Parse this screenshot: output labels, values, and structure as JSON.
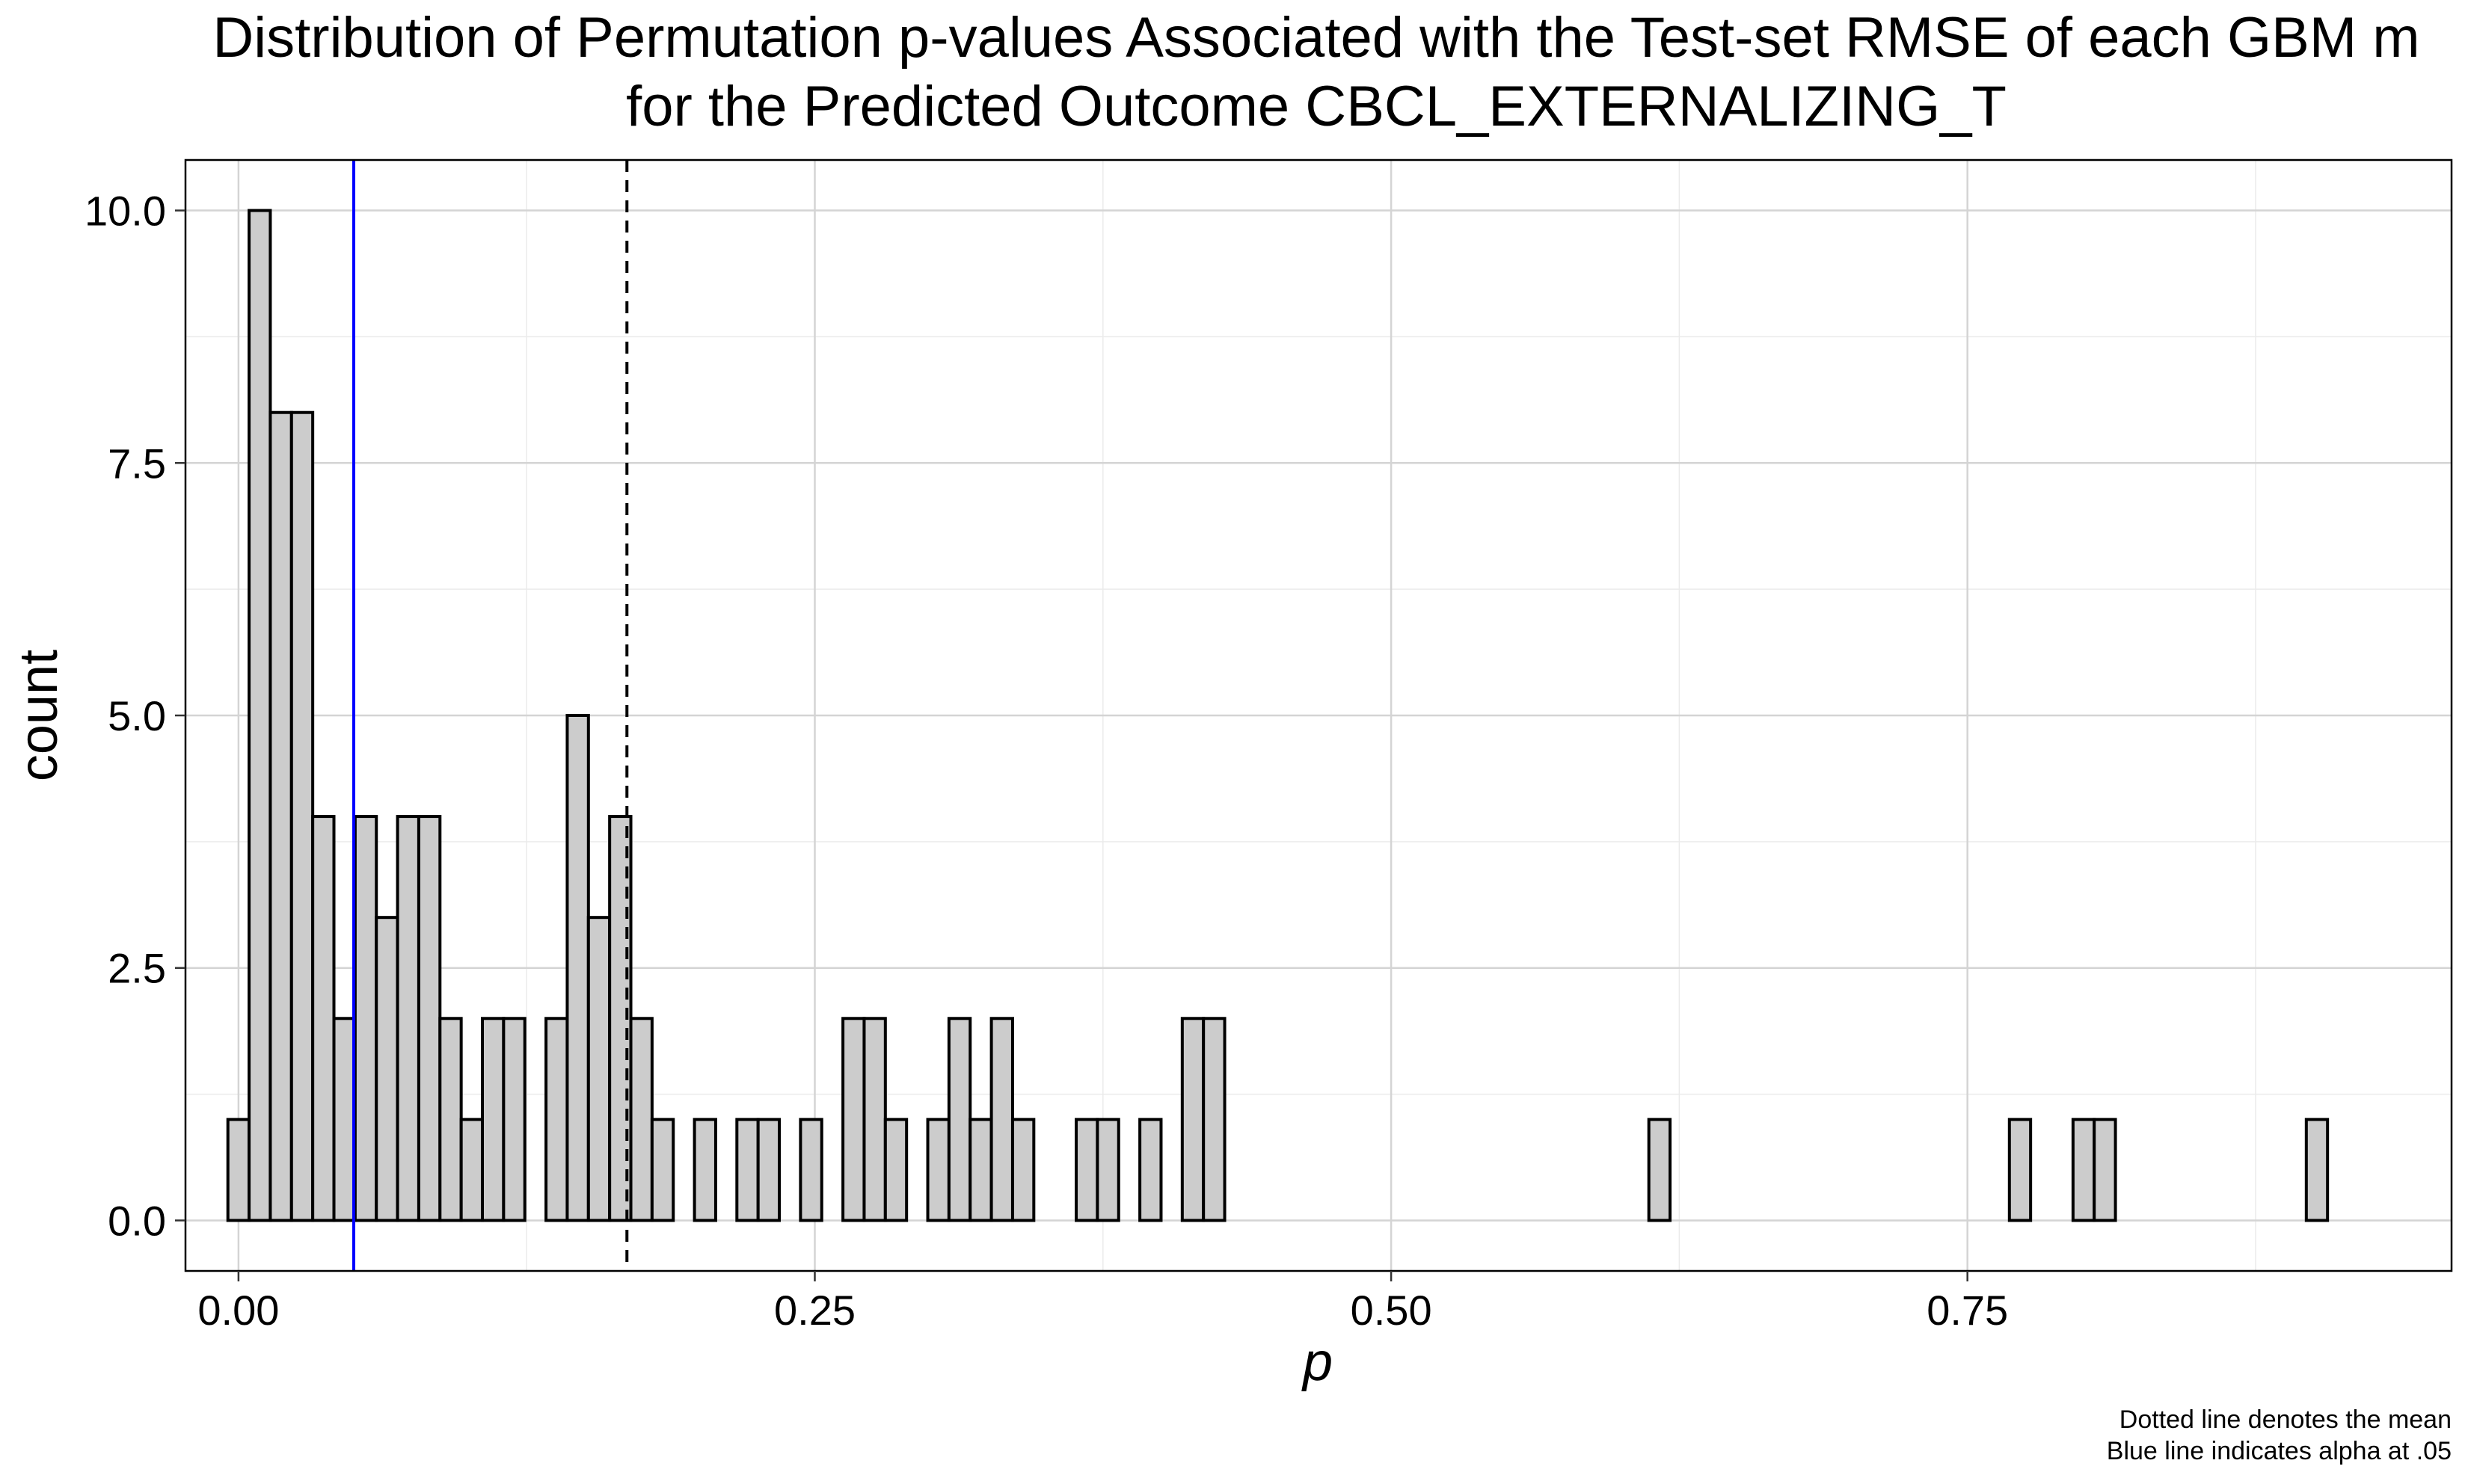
{
  "chart_data": {
    "type": "bar",
    "title_line1": "Distribution of Permutation p-values Associated with the Test-set RMSE of each GBM m",
    "title_line2": "for the Predicted Outcome CBCL_EXTERNALIZING_T",
    "xlabel": "p",
    "ylabel": "count",
    "xlim": [
      -0.023,
      0.96
    ],
    "ylim": [
      -0.5,
      10.5
    ],
    "x_ticks": [
      {
        "value": 0.0,
        "label": "0.00"
      },
      {
        "value": 0.25,
        "label": "0.25"
      },
      {
        "value": 0.5,
        "label": "0.50"
      },
      {
        "value": 0.75,
        "label": "0.75"
      }
    ],
    "y_ticks": [
      {
        "value": 0.0,
        "label": "0.0"
      },
      {
        "value": 2.5,
        "label": "2.5"
      },
      {
        "value": 5.0,
        "label": "5.0"
      },
      {
        "value": 7.5,
        "label": "7.5"
      },
      {
        "value": 10.0,
        "label": "10.0"
      }
    ],
    "grid": true,
    "bin_width": 0.0092,
    "bins_start": -0.0046,
    "counts": [
      1,
      10,
      8,
      8,
      4,
      2,
      4,
      3,
      4,
      4,
      2,
      1,
      2,
      2,
      0,
      2,
      5,
      3,
      4,
      2,
      1,
      0,
      1,
      0,
      1,
      1,
      0,
      1,
      0,
      2,
      2,
      1,
      0,
      1,
      2,
      1,
      2,
      1,
      0,
      0,
      1,
      1,
      0,
      1,
      0,
      2,
      2,
      0,
      0,
      0,
      0,
      0,
      0,
      0,
      0,
      0,
      0,
      0,
      0,
      0,
      0,
      0,
      0,
      0,
      0,
      0,
      0,
      1,
      0,
      0,
      0,
      0,
      0,
      0,
      0,
      0,
      0,
      0,
      0,
      0,
      0,
      0,
      0,
      0,
      1,
      0,
      0,
      1,
      1,
      0,
      0,
      0,
      0,
      0,
      0,
      0,
      0,
      0,
      1
    ],
    "bar_fill": "#cccccc",
    "bar_stroke": "#000000",
    "mean_line": {
      "value": 0.1685,
      "color": "#000000",
      "style": "dashed"
    },
    "alpha_line": {
      "value": 0.05,
      "color": "#0000ff",
      "style": "solid"
    },
    "caption_line1": "Dotted line denotes the mean",
    "caption_line2": "Blue line indicates alpha at .05"
  }
}
